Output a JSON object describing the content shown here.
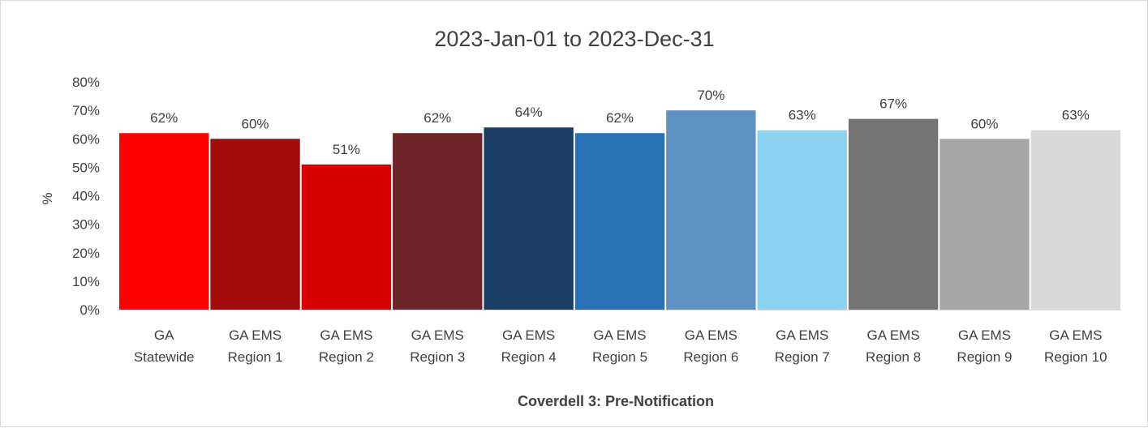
{
  "chart_data": {
    "type": "bar",
    "title": "2023-Jan-01 to 2023-Dec-31",
    "xlabel": "Coverdell 3: Pre-Notification",
    "ylabel": "%",
    "ylim": [
      0,
      80
    ],
    "yticks": [
      "0%",
      "10%",
      "20%",
      "30%",
      "40%",
      "50%",
      "60%",
      "70%",
      "80%"
    ],
    "grid": false,
    "legend": "none",
    "categories": [
      [
        "GA",
        "Statewide"
      ],
      [
        "GA EMS",
        "Region 1"
      ],
      [
        "GA EMS",
        "Region 2"
      ],
      [
        "GA EMS",
        "Region 3"
      ],
      [
        "GA EMS",
        "Region 4"
      ],
      [
        "GA EMS",
        "Region 5"
      ],
      [
        "GA EMS",
        "Region 6"
      ],
      [
        "GA EMS",
        "Region 7"
      ],
      [
        "GA EMS",
        "Region 8"
      ],
      [
        "GA EMS",
        "Region 9"
      ],
      [
        "GA EMS",
        "Region 10"
      ]
    ],
    "values": [
      62,
      60,
      51,
      62,
      64,
      62,
      70,
      63,
      67,
      60,
      63
    ],
    "value_labels": [
      "62%",
      "60%",
      "51%",
      "62%",
      "64%",
      "62%",
      "70%",
      "63%",
      "67%",
      "60%",
      "63%"
    ],
    "colors": [
      "#ff0000",
      "#a20b0b",
      "#d90000",
      "#6e2428",
      "#1b3d66",
      "#2970b5",
      "#5f92c2",
      "#8cd3f2",
      "#747474",
      "#a6a6a6",
      "#d9d9d9"
    ]
  }
}
